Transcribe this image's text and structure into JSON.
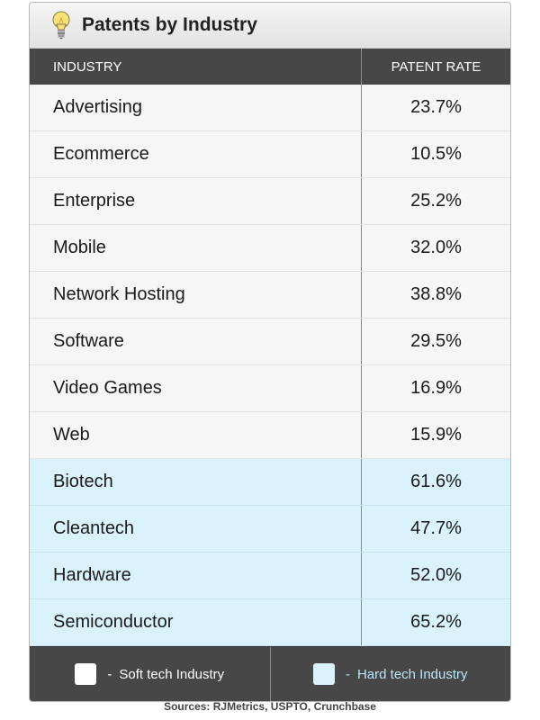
{
  "title": "Patents by Industry",
  "header": {
    "industry": "INDUSTRY",
    "rate": "PATENT RATE"
  },
  "colors": {
    "soft_row": "#f6f6f6",
    "hard_row": "#d9f2fb",
    "header_bg": "#474747"
  },
  "chart_data": {
    "type": "table",
    "title": "Patents by Industry",
    "columns": [
      "INDUSTRY",
      "PATENT RATE"
    ],
    "rows": [
      {
        "industry": "Advertising",
        "rate": "23.7%",
        "value": 23.7,
        "category": "soft"
      },
      {
        "industry": "Ecommerce",
        "rate": "10.5%",
        "value": 10.5,
        "category": "soft"
      },
      {
        "industry": "Enterprise",
        "rate": "25.2%",
        "value": 25.2,
        "category": "soft"
      },
      {
        "industry": "Mobile",
        "rate": "32.0%",
        "value": 32.0,
        "category": "soft"
      },
      {
        "industry": "Network Hosting",
        "rate": "38.8%",
        "value": 38.8,
        "category": "soft"
      },
      {
        "industry": "Software",
        "rate": "29.5%",
        "value": 29.5,
        "category": "soft"
      },
      {
        "industry": "Video Games",
        "rate": "16.9%",
        "value": 16.9,
        "category": "soft"
      },
      {
        "industry": "Web",
        "rate": "15.9%",
        "value": 15.9,
        "category": "soft"
      },
      {
        "industry": "Biotech",
        "rate": "61.6%",
        "value": 61.6,
        "category": "hard"
      },
      {
        "industry": "Cleantech",
        "rate": "47.7%",
        "value": 47.7,
        "category": "hard"
      },
      {
        "industry": "Hardware",
        "rate": "52.0%",
        "value": 52.0,
        "category": "hard"
      },
      {
        "industry": "Semiconductor",
        "rate": "65.2%",
        "value": 65.2,
        "category": "hard"
      }
    ]
  },
  "legend": {
    "dash": "-",
    "soft_label": "Soft tech Industry",
    "hard_label": "Hard tech Industry"
  },
  "sources": "Sources: RJMetrics, USPTO, Crunchbase"
}
